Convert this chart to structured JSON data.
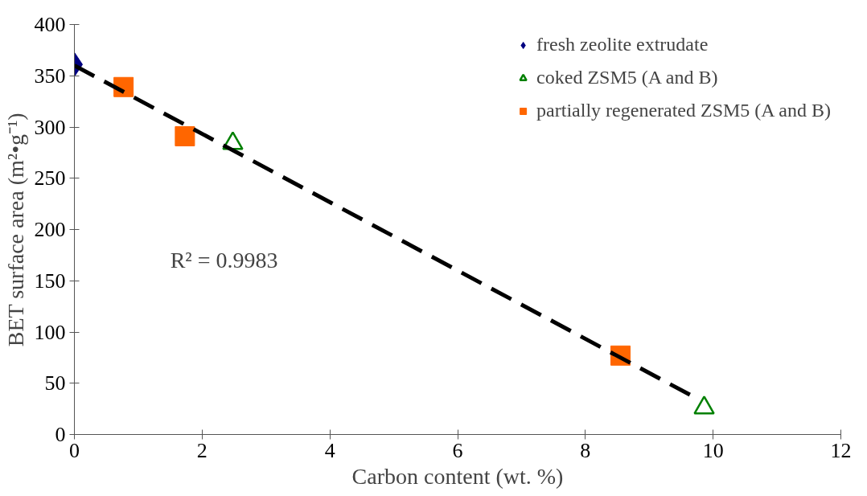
{
  "chart_data": {
    "type": "scatter",
    "xlabel": "Carbon content (wt. %)",
    "ylabel": "BET surface area (m²•g⁻¹)",
    "xlim": [
      0,
      12
    ],
    "xticks": [
      0,
      2,
      4,
      6,
      8,
      10,
      12
    ],
    "ylim": [
      0,
      400
    ],
    "yticks": [
      0,
      50,
      100,
      150,
      200,
      250,
      300,
      350,
      400
    ],
    "grid": false,
    "legend": "top right",
    "annotations": [
      "R² = 0.9983"
    ],
    "series": [
      {
        "name": "fresh zeolite extrudate",
        "color": "#000080",
        "marker": "diamond",
        "x": [
          0
        ],
        "values": [
          361
        ]
      },
      {
        "name": "coked ZSM5 (A and B)",
        "color": "#008000",
        "marker": "triangle",
        "x": [
          2.48,
          9.86
        ],
        "values": [
          284,
          26
        ]
      },
      {
        "name": "partially regenerated ZSM5 (A and B)",
        "color": "#ff6600",
        "marker": "square",
        "x": [
          0.77,
          1.73,
          8.55
        ],
        "values": [
          339,
          291,
          77
        ]
      },
      {
        "type": "line",
        "color": "#000000",
        "line_style": "dashed",
        "x": [
          0,
          9.72
        ],
        "values": [
          360,
          36
        ]
      }
    ]
  }
}
